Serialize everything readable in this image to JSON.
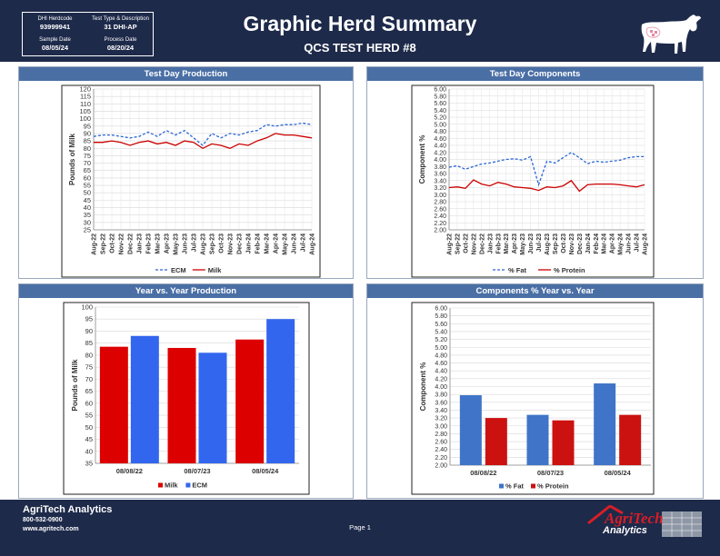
{
  "header": {
    "title": "Graphic Herd Summary",
    "subtitle": "QCS TEST HERD #8",
    "herdcode_label": "DHI Herdcode",
    "herdcode": "93999941",
    "test_type_label": "Test Type & Description",
    "test_type": "31 DHI-AP",
    "sample_date_label": "Sample Date",
    "sample_date": "08/05/24",
    "process_date_label": "Process Date",
    "process_date": "08/20/24"
  },
  "footer": {
    "company": "AgriTech Analytics",
    "phone": "800-532-0900",
    "website": "www.agritech.com",
    "page": "Page 1",
    "logo_top": "AgriTech",
    "logo_bottom": "Analytics"
  },
  "colors": {
    "navy": "#1e2a4a",
    "panel_header": "#4a6fa5",
    "milk_red": "#cc0000",
    "ecm_blue": "#2a66d6",
    "fat_blue": "#3f74c8"
  },
  "chart_data": [
    {
      "type": "line",
      "title": "Test Day Production",
      "ylabel": "Pounds of Milk",
      "ylim": [
        25,
        120
      ],
      "yticks": [
        25,
        30,
        35,
        40,
        45,
        50,
        55,
        60,
        65,
        70,
        75,
        80,
        85,
        90,
        95,
        100,
        105,
        110,
        115,
        120
      ],
      "categories": [
        "Aug-22",
        "Sep-22",
        "Oct-22",
        "Nov-22",
        "Dec-22",
        "Jan-23",
        "Feb-23",
        "Mar-23",
        "Apr-23",
        "May-23",
        "Jun-23",
        "Jul-23",
        "Aug-23",
        "Sep-23",
        "Oct-23",
        "Nov-23",
        "Dec-23",
        "Jan-24",
        "Feb-24",
        "Mar-24",
        "Apr-24",
        "May-24",
        "Jun-24",
        "Jul-24",
        "Aug-24"
      ],
      "series": [
        {
          "name": "ECM",
          "style": "dashed",
          "color": "#2a66d6",
          "values": [
            88,
            89,
            89,
            88,
            87,
            88,
            91,
            88,
            92,
            89,
            92,
            87,
            82,
            90,
            87,
            90,
            89,
            91,
            92,
            96,
            95,
            96,
            96,
            97,
            96
          ]
        },
        {
          "name": "Milk",
          "style": "solid",
          "color": "#cc0000",
          "values": [
            84,
            84,
            85,
            84,
            82,
            84,
            85,
            83,
            84,
            82,
            85,
            84,
            80,
            83,
            82,
            80,
            83,
            82,
            85,
            87,
            90,
            89,
            89,
            88,
            87
          ]
        }
      ],
      "legend": "bottom"
    },
    {
      "type": "line",
      "title": "Test Day Components",
      "ylabel": "Component %",
      "ylim": [
        2.0,
        6.0
      ],
      "yticks": [
        "2.00",
        "2.20",
        "2.40",
        "2.60",
        "2.80",
        "3.00",
        "3.20",
        "3.40",
        "3.60",
        "3.80",
        "4.00",
        "4.20",
        "4.40",
        "4.60",
        "4.80",
        "5.00",
        "5.20",
        "5.40",
        "5.60",
        "5.80",
        "6.00"
      ],
      "categories": [
        "Aug-22",
        "Sep-22",
        "Oct-22",
        "Nov-22",
        "Dec-22",
        "Jan-23",
        "Feb-23",
        "Mar-23",
        "Apr-23",
        "May-23",
        "Jun-23",
        "Jul-23",
        "Aug-23",
        "Sep-23",
        "Oct-23",
        "Nov-23",
        "Dec-23",
        "Jan-24",
        "Feb-24",
        "Mar-24",
        "Apr-24",
        "May-24",
        "Jun-24",
        "Jul-24",
        "Aug-24"
      ],
      "series": [
        {
          "name": "% Fat",
          "style": "dashed",
          "color": "#2a66d6",
          "values": [
            3.78,
            3.82,
            3.72,
            3.8,
            3.87,
            3.9,
            3.95,
            4.0,
            4.02,
            3.98,
            4.08,
            3.28,
            3.95,
            3.9,
            4.05,
            4.2,
            4.05,
            3.88,
            3.95,
            3.92,
            3.95,
            3.98,
            4.05,
            4.08,
            4.08
          ]
        },
        {
          "name": "% Protein",
          "style": "solid",
          "color": "#cc0000",
          "values": [
            3.2,
            3.22,
            3.18,
            3.42,
            3.3,
            3.25,
            3.35,
            3.3,
            3.22,
            3.2,
            3.18,
            3.12,
            3.22,
            3.2,
            3.25,
            3.4,
            3.1,
            3.28,
            3.3,
            3.3,
            3.3,
            3.28,
            3.25,
            3.22,
            3.28
          ]
        }
      ],
      "legend": "bottom"
    },
    {
      "type": "bar",
      "title": "Year vs. Year Production",
      "ylabel": "Pounds of Milk",
      "ylim": [
        35,
        100
      ],
      "yticks": [
        35,
        40,
        45,
        50,
        55,
        60,
        65,
        70,
        75,
        80,
        85,
        90,
        95,
        100
      ],
      "categories": [
        "08/08/22",
        "08/07/23",
        "08/05/24"
      ],
      "series": [
        {
          "name": "Milk",
          "color": "#dd0000",
          "values": [
            83.5,
            83,
            86.5
          ]
        },
        {
          "name": "ECM",
          "color": "#3366ee",
          "values": [
            88,
            81,
            95
          ]
        }
      ],
      "legend": "bottom"
    },
    {
      "type": "bar",
      "title": "Components % Year vs. Year",
      "ylabel": "Component %",
      "ylim": [
        2.0,
        6.0
      ],
      "yticks": [
        "2.00",
        "2.20",
        "2.40",
        "2.60",
        "2.80",
        "3.00",
        "3.20",
        "3.40",
        "3.60",
        "3.80",
        "4.00",
        "4.20",
        "4.40",
        "4.60",
        "4.80",
        "5.00",
        "5.20",
        "5.40",
        "5.60",
        "5.80",
        "6.00"
      ],
      "categories": [
        "08/08/22",
        "08/07/23",
        "08/05/24"
      ],
      "series": [
        {
          "name": "% Fat",
          "color": "#3f74c8",
          "values": [
            3.78,
            3.28,
            4.08
          ]
        },
        {
          "name": "% Protein",
          "color": "#cc1111",
          "values": [
            3.2,
            3.14,
            3.28
          ]
        }
      ],
      "legend": "bottom"
    }
  ]
}
